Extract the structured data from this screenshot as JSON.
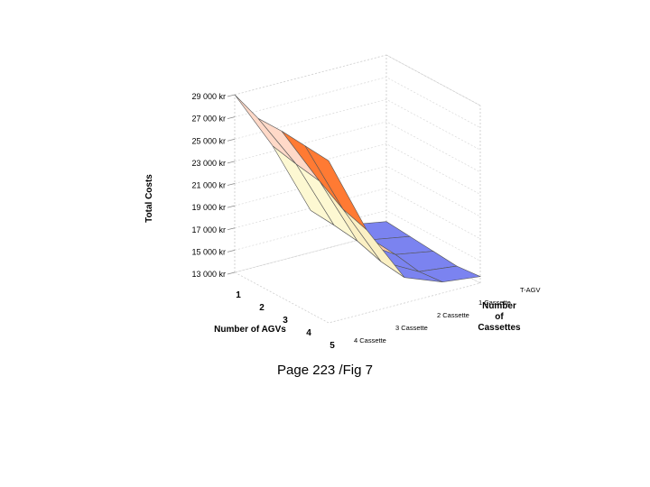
{
  "chart_data": {
    "type": "surface",
    "title": "",
    "zlabel": "Total Costs",
    "xlabel": "Number of AGVs",
    "ylabel": "Number of Cassettes",
    "ylabel_lines": [
      "Number",
      "of",
      "Cassettes"
    ],
    "z_ticks": [
      "13 000 kr",
      "15 000 kr",
      "17 000 kr",
      "19 000 kr",
      "21 000 kr",
      "23 000 kr",
      "25 000 kr",
      "27 000 kr",
      "29 000 kr"
    ],
    "z_values": [
      13000,
      15000,
      17000,
      19000,
      21000,
      23000,
      25000,
      27000,
      29000
    ],
    "zlim": [
      13000,
      29000
    ],
    "x_ticks": [
      "1",
      "2",
      "3",
      "4",
      "5"
    ],
    "y_ticks": [
      "T-AGV",
      "1 Cassette",
      "2 Cassette",
      "3 Cassette",
      "4 Cassette"
    ],
    "surface": [
      [
        29000,
        23500,
        16800,
        14600,
        14000
      ],
      [
        28000,
        23000,
        16600,
        14400,
        13800
      ],
      [
        28000,
        22600,
        16300,
        14200,
        13600
      ],
      [
        27800,
        21200,
        15600,
        13800,
        13400
      ],
      [
        27600,
        20500,
        15300,
        14000,
        13600
      ]
    ],
    "band_colors": [
      "#7b83f0",
      "#f8c7a4",
      "#fbf0c4",
      "#fdf8d2",
      "#ffcc22",
      "#ff7a33",
      "#ffd9c8",
      "#8a4e78",
      "#c9cdfb"
    ],
    "grid": true
  },
  "caption": "Page 223 /Fig 7"
}
